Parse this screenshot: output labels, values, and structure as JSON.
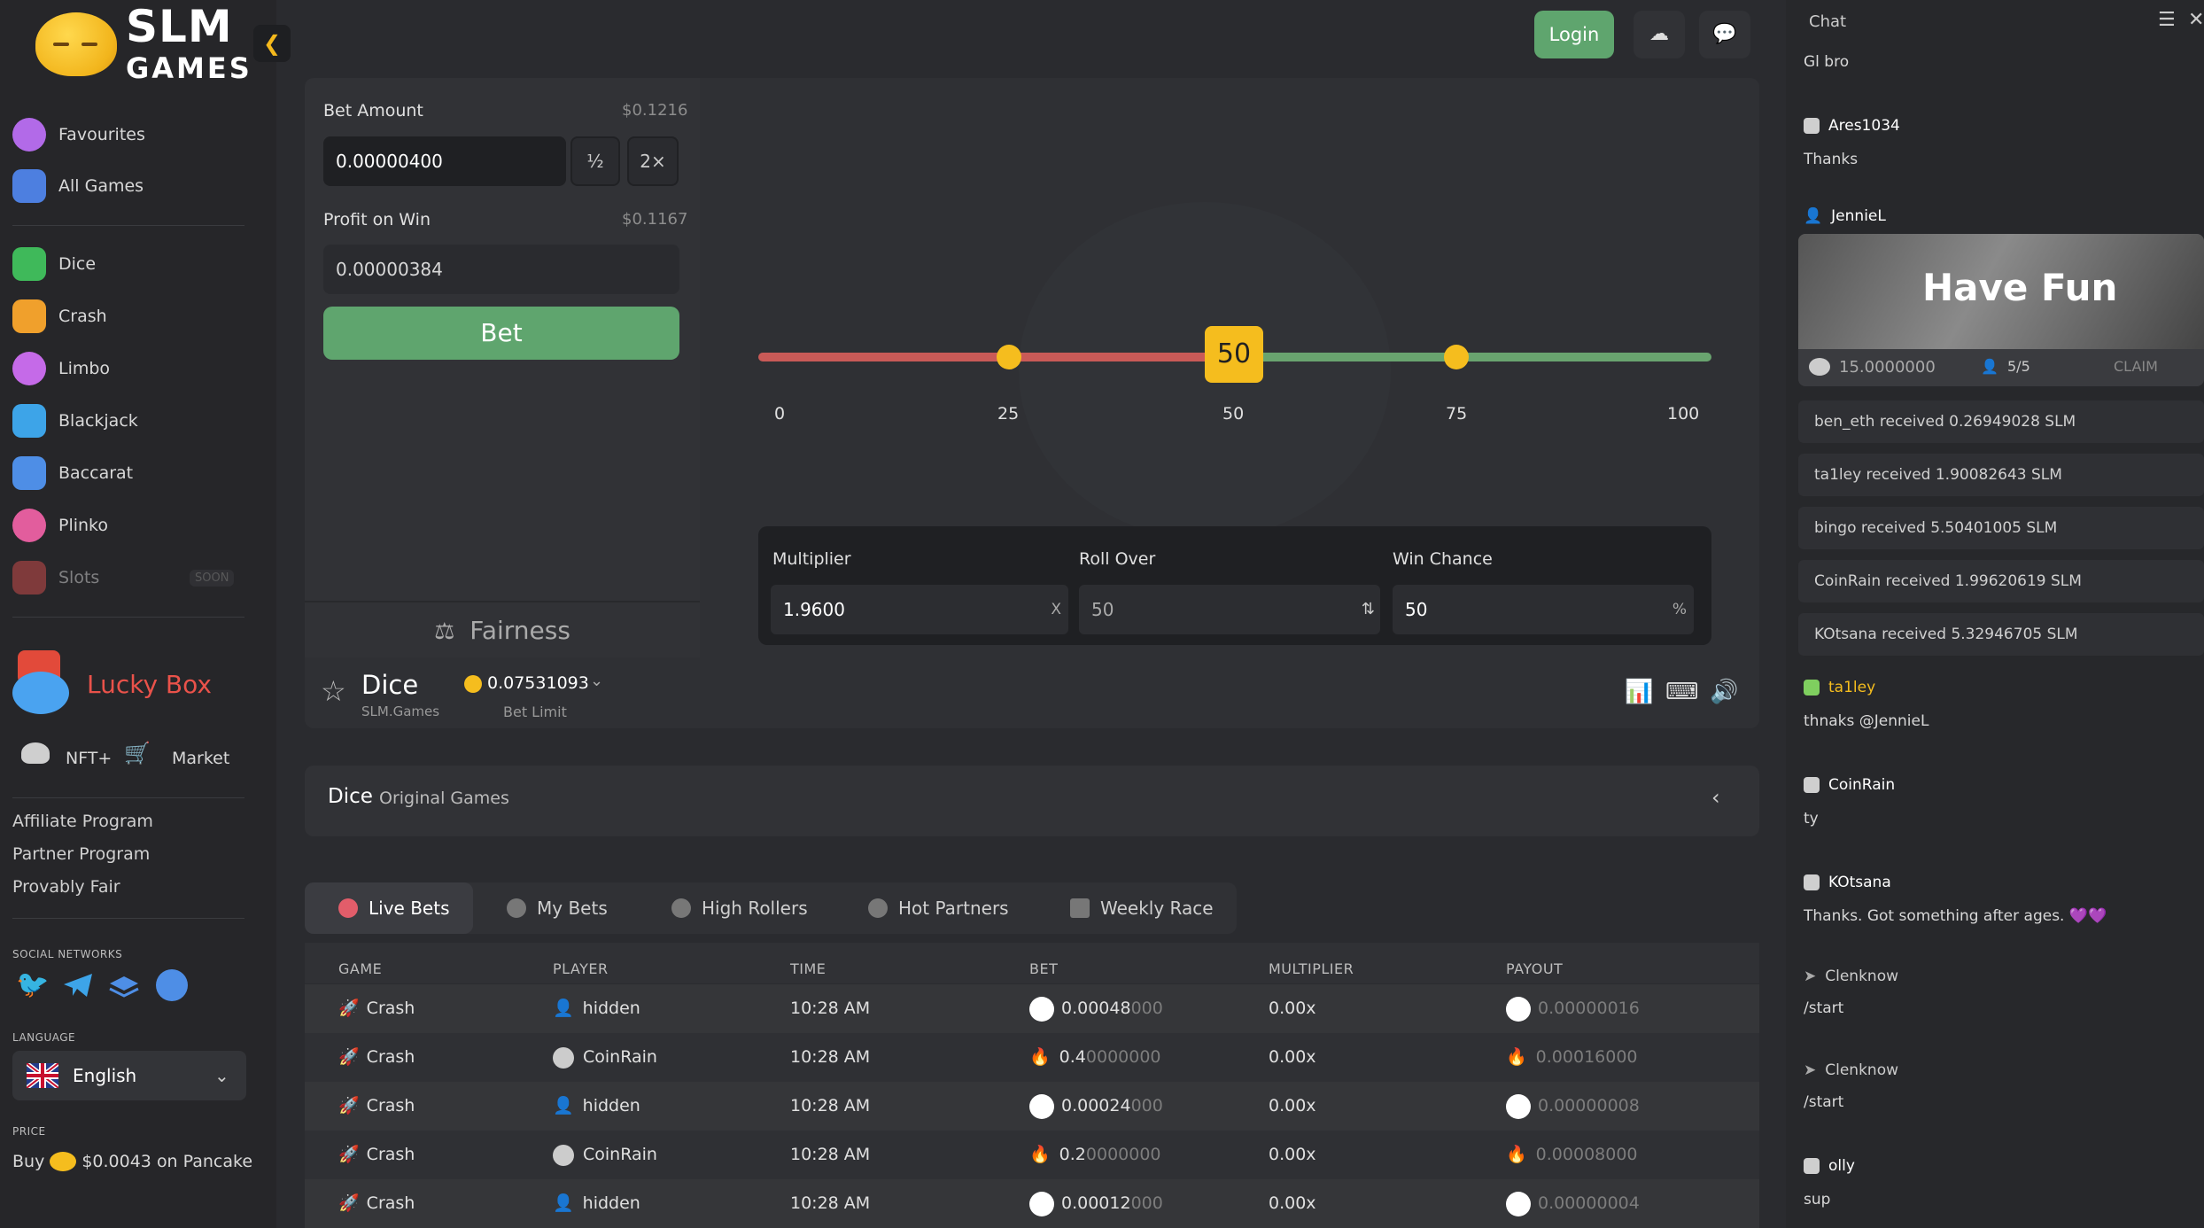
{
  "brand": {
    "line1": "SLM",
    "line2": "GAMES"
  },
  "sidebar": {
    "top_items": [
      {
        "label": "Favourites",
        "icon": "smiley-icon",
        "color": "#b26ae8"
      },
      {
        "label": "All Games",
        "icon": "grid-icon",
        "color": "#4d7fe0"
      }
    ],
    "games": [
      {
        "label": "Dice",
        "icon": "dice-icon",
        "color": "#3fb95a"
      },
      {
        "label": "Crash",
        "icon": "rocket-icon",
        "color": "#f0a02c"
      },
      {
        "label": "Limbo",
        "icon": "planet-icon",
        "color": "#c56ae8"
      },
      {
        "label": "Blackjack",
        "icon": "cards-icon",
        "color": "#3da4e8"
      },
      {
        "label": "Baccarat",
        "icon": "baccarat-icon",
        "color": "#4e8ee6"
      },
      {
        "label": "Plinko",
        "icon": "plinko-icon",
        "color": "#e25d9d"
      },
      {
        "label": "Slots",
        "icon": "slots-icon",
        "color": "#d84e4e",
        "badge": "SOON"
      }
    ],
    "lucky_box": "Lucky Box",
    "nft": "NFT+",
    "market": "Market",
    "links": [
      "Affiliate Program",
      "Partner Program",
      "Provably Fair"
    ],
    "social_heading": "SOCIAL NETWORKS",
    "language_heading": "LANGUAGE",
    "language": "English",
    "price_heading": "PRICE",
    "price_prefix": "Buy",
    "price_text": "$0.0043 on Pancake"
  },
  "header": {
    "login": "Login"
  },
  "bet": {
    "bet_amount_label": "Bet Amount",
    "bet_amount_usd": "$0.1216",
    "bet_amount_value": "0.00000400",
    "half": "½",
    "double": "2×",
    "profit_label": "Profit on Win",
    "profit_usd": "$0.1167",
    "profit_value": "0.00000384",
    "bet_button": "Bet",
    "fairness": "Fairness"
  },
  "slider": {
    "value": "50",
    "ticks": [
      "0",
      "25",
      "50",
      "75",
      "100"
    ]
  },
  "calc": {
    "multiplier_label": "Multiplier",
    "multiplier_value": "1.9600",
    "multiplier_suffix": "X",
    "rollover_label": "Roll Over",
    "rollover_value": "50",
    "winchance_label": "Win Chance",
    "winchance_value": "50",
    "winchance_suffix": "%"
  },
  "infobar": {
    "game": "Dice",
    "provider": "SLM.Games",
    "limit": "0.07531093",
    "limit_label": "Bet Limit"
  },
  "description": {
    "title": "Dice",
    "subtitle": "Original Games"
  },
  "tabs": [
    {
      "label": "Live Bets",
      "icon": "live-icon"
    },
    {
      "label": "My Bets",
      "icon": "user-icon"
    },
    {
      "label": "High Rollers",
      "icon": "crown-icon"
    },
    {
      "label": "Hot Partners",
      "icon": "fire-icon"
    },
    {
      "label": "Weekly Race",
      "icon": "trophy-icon"
    }
  ],
  "table": {
    "headers": [
      "GAME",
      "PLAYER",
      "TIME",
      "BET",
      "MULTIPLIER",
      "PAYOUT"
    ],
    "rows": [
      {
        "game": "Crash",
        "player": "hidden",
        "time": "10:28 AM",
        "bet_main": "0.00048",
        "bet_dim": "000",
        "coin": "eth",
        "multiplier": "0.00x",
        "payout": "0.00000016"
      },
      {
        "game": "Crash",
        "player": "CoinRain",
        "time": "10:28 AM",
        "bet_main": "0.4",
        "bet_dim": "0000000",
        "coin": "flame",
        "multiplier": "0.00x",
        "payout": "0.00016000"
      },
      {
        "game": "Crash",
        "player": "hidden",
        "time": "10:28 AM",
        "bet_main": "0.00024",
        "bet_dim": "000",
        "coin": "eth",
        "multiplier": "0.00x",
        "payout": "0.00000008"
      },
      {
        "game": "Crash",
        "player": "CoinRain",
        "time": "10:28 AM",
        "bet_main": "0.2",
        "bet_dim": "0000000",
        "coin": "flame",
        "multiplier": "0.00x",
        "payout": "0.00008000"
      },
      {
        "game": "Crash",
        "player": "hidden",
        "time": "10:28 AM",
        "bet_main": "0.00012",
        "bet_dim": "000",
        "coin": "eth",
        "multiplier": "0.00x",
        "payout": "0.00000004"
      }
    ]
  },
  "chat": {
    "title": "Chat",
    "messages": [
      {
        "user": "",
        "text": "Gl bro"
      },
      {
        "user": "Ares1034",
        "text": "Thanks"
      },
      {
        "user": "JennieL",
        "text": ""
      },
      {
        "user": "ta1ley",
        "text": "thnaks @JennieL"
      },
      {
        "user": "CoinRain",
        "text": "ty"
      },
      {
        "user": "KOtsana",
        "text": "Thanks. Got something after ages. 💜💜"
      },
      {
        "user": "Clenknow",
        "text": "/start"
      },
      {
        "user": "Clenknow",
        "text": "/start"
      },
      {
        "user": "olly",
        "text": "sup"
      }
    ],
    "rain_card": {
      "title": "Have Fun",
      "amount": "15.0000000",
      "count": "5/5",
      "claim": "CLAIM"
    },
    "received": [
      "ben_eth  received 0.26949028 SLM",
      "ta1ley  received 1.90082643 SLM",
      "bingo  received 5.50401005 SLM",
      "CoinRain  received 1.99620619 SLM",
      "KOtsana  received 5.32946705 SLM"
    ]
  }
}
